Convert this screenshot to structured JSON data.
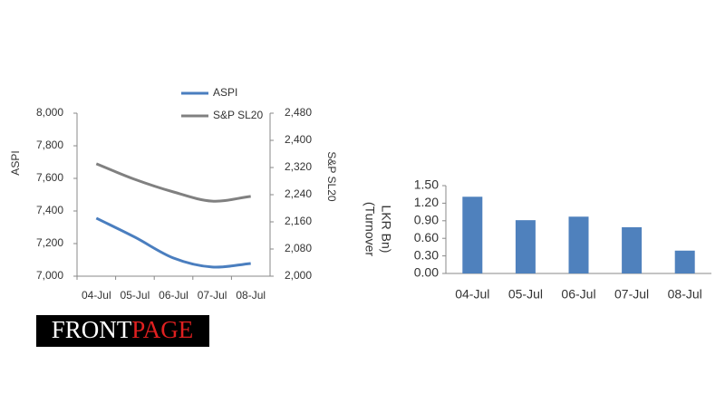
{
  "chart_data": [
    {
      "type": "line",
      "y_label": "ASPI",
      "y2_label": "S&P SL20",
      "categories": [
        "04-Jul",
        "05-Jul",
        "06-Jul",
        "07-Jul",
        "08-Jul"
      ],
      "series": [
        {
          "name": "ASPI",
          "color": "#4a7ebf",
          "values": [
            7356,
            7239,
            7111,
            7056,
            7078
          ]
        },
        {
          "name": "S&P SL20",
          "color": "#808080",
          "axis": "y2",
          "values": [
            2331,
            2285,
            2248,
            2221,
            2235
          ]
        }
      ],
      "ylim": [
        7000,
        8000
      ],
      "yticks": [
        {
          "value": 7000,
          "label": "7,000"
        },
        {
          "value": 7200,
          "label": "7,200"
        },
        {
          "value": 7400,
          "label": "7,400"
        },
        {
          "value": 7600,
          "label": "7,600"
        },
        {
          "value": 7800,
          "label": "7,800"
        },
        {
          "value": 8000,
          "label": "8,000"
        }
      ],
      "y2lim": [
        2000,
        2480
      ],
      "y2ticks": [
        {
          "value": 2000,
          "label": "2,000"
        },
        {
          "value": 2080,
          "label": "2,080"
        },
        {
          "value": 2160,
          "label": "2,160"
        },
        {
          "value": 2240,
          "label": "2,240"
        },
        {
          "value": 2320,
          "label": "2,320"
        },
        {
          "value": 2400,
          "label": "2,400"
        },
        {
          "value": 2480,
          "label": "2,480"
        }
      ],
      "legend": "top"
    },
    {
      "type": "bar",
      "y_label": [
        "(Turnover",
        "LKR Bn)"
      ],
      "categories": [
        "04-Jul",
        "05-Jul",
        "06-Jul",
        "07-Jul",
        "08-Jul"
      ],
      "values": [
        1.31,
        0.91,
        0.97,
        0.79,
        0.39
      ],
      "color": "#4f81bd",
      "ylim": [
        0,
        1.5
      ],
      "yticks": [
        {
          "value": 0,
          "label": "0.00"
        },
        {
          "value": 0.3,
          "label": "0.30"
        },
        {
          "value": 0.6,
          "label": "0.60"
        },
        {
          "value": 0.9,
          "label": "0.90"
        },
        {
          "value": 1.2,
          "label": "1.20"
        },
        {
          "value": 1.5,
          "label": "1.50"
        }
      ]
    }
  ],
  "logo": {
    "part1": "FRONT",
    "part2": "PAGE"
  }
}
